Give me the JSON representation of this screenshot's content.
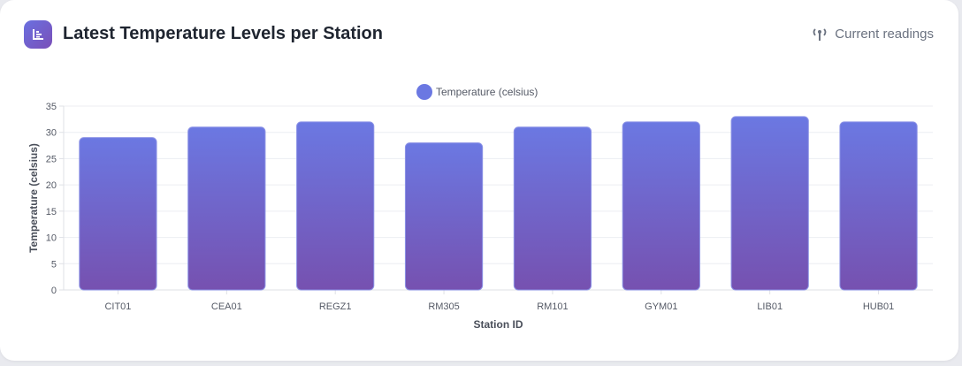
{
  "header": {
    "title": "Latest Temperature Levels per Station",
    "title_icon": "bar-chart-icon",
    "status_icon": "antenna-icon",
    "status_label": "Current readings"
  },
  "colors": {
    "bar_top": "#6b78e2",
    "bar_bottom": "#7651b0",
    "bar_border": "#8c93e6",
    "legend": "#6b78e2"
  },
  "chart_data": {
    "type": "bar",
    "categories": [
      "CIT01",
      "CEA01",
      "REGZ1",
      "RM305",
      "RM101",
      "GYM01",
      "LIB01",
      "HUB01"
    ],
    "series": [
      {
        "name": "Temperature (celsius)",
        "values": [
          29,
          31,
          32,
          28,
          31,
          32,
          33,
          32
        ]
      }
    ],
    "title": "",
    "xlabel": "Station ID",
    "ylabel": "Temperature (celsius)",
    "ylim": [
      0,
      35
    ],
    "yticks": [
      0,
      5,
      10,
      15,
      20,
      25,
      30,
      35
    ],
    "grid": true,
    "legend_position": "top-center"
  }
}
